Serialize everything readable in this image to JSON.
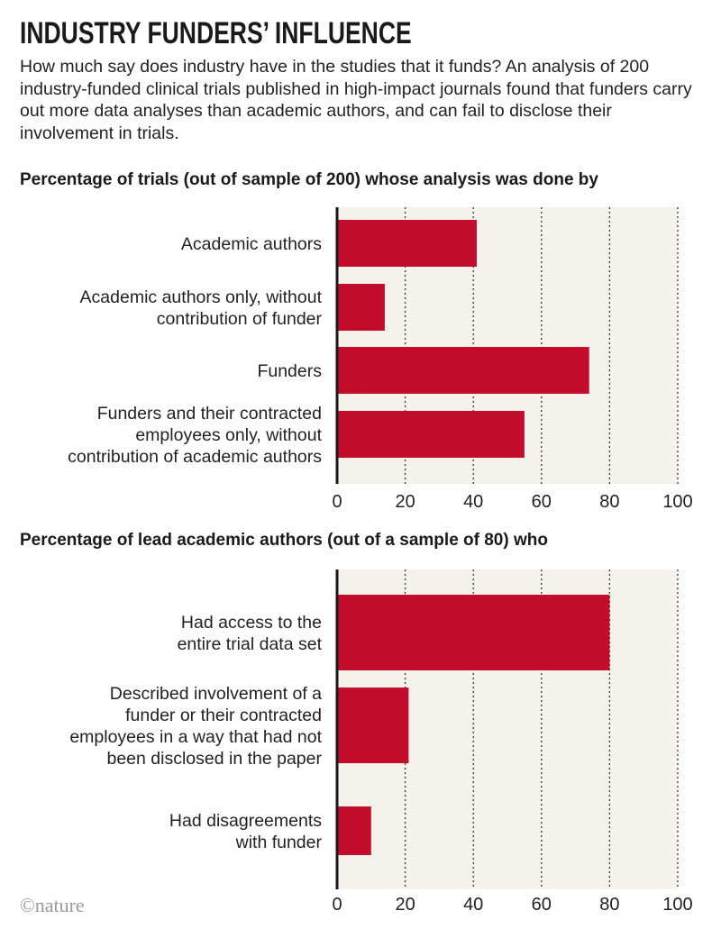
{
  "header": {
    "title": "INDUSTRY FUNDERS’ INFLUENCE",
    "intro": "How much say does industry have in the studies that it funds? An analysis of 200 industry-funded clinical trials published in high-impact journals found that funders carry out more data analyses than academic authors, and can fail to disclose their involvement in trials."
  },
  "colors": {
    "bar": "#c40c2c",
    "plot_bg": "#f4f2ea",
    "axis": "#1a1a1a"
  },
  "chart_data": [
    {
      "type": "bar",
      "orientation": "horizontal",
      "title": "Percentage of trials (out of sample of 200) whose analysis was done by",
      "categories": [
        [
          "Academic authors"
        ],
        [
          "Academic authors only, without",
          "contribution of funder"
        ],
        [
          "Funders"
        ],
        [
          "Funders and their contracted",
          "employees only, without",
          "contribution of academic authors"
        ]
      ],
      "values": [
        41,
        14,
        74,
        55
      ],
      "xlim": [
        0,
        100
      ],
      "ticks": [
        "0",
        "20",
        "40",
        "60",
        "80",
        "100"
      ],
      "grid": true
    },
    {
      "type": "bar",
      "orientation": "horizontal",
      "title": "Percentage of lead academic authors (out of a sample of 80) who",
      "categories": [
        [
          "Had access to the",
          "entire trial data set"
        ],
        [
          "Described involvement of a",
          "funder or their contracted",
          "employees in a way that had not",
          "been disclosed in the paper"
        ],
        [
          "Had disagreements",
          "with funder"
        ]
      ],
      "values": [
        80,
        21,
        10
      ],
      "xlim": [
        0,
        100
      ],
      "ticks": [
        "0",
        "20",
        "40",
        "60",
        "80",
        "100"
      ],
      "grid": true
    }
  ],
  "footer": {
    "credit": "©nature"
  }
}
